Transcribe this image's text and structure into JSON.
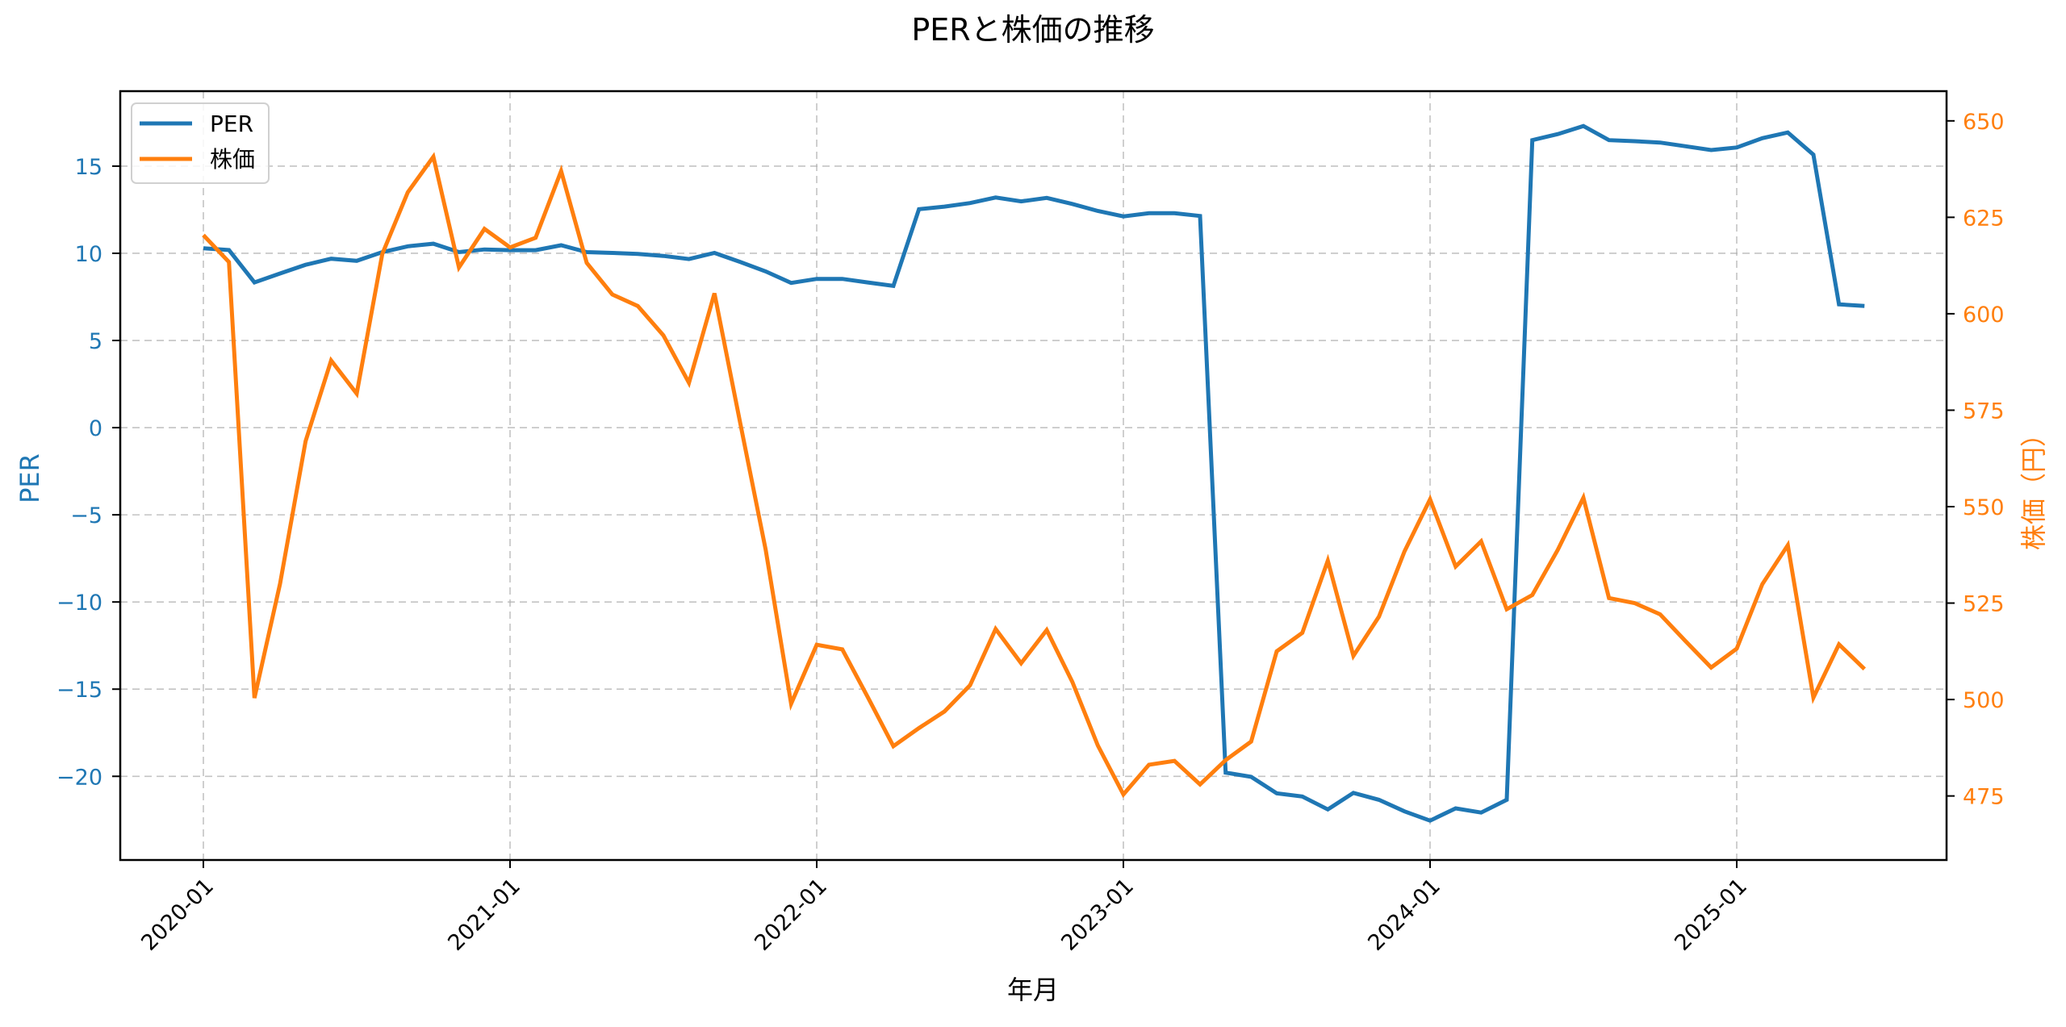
{
  "chart_data": {
    "type": "line",
    "title": "PERと株価の推移",
    "xlabel": "年月",
    "ylabel_left": "PER",
    "ylabel_right": "株価（円）",
    "x_ticks": [
      "2020-01",
      "2021-01",
      "2022-01",
      "2023-01",
      "2024-01",
      "2025-01"
    ],
    "y_left_ticks": [
      15,
      10,
      5,
      0,
      -5,
      -10,
      -15,
      -20
    ],
    "y_right_ticks": [
      650,
      625,
      600,
      575,
      550,
      525,
      500,
      475
    ],
    "ylim_left": [
      -24.8,
      19.3
    ],
    "ylim_right": [
      458.4,
      657.7
    ],
    "grid": true,
    "legend_position": "upper left",
    "x": [
      "2020-01",
      "2020-02",
      "2020-03",
      "2020-04",
      "2020-05",
      "2020-06",
      "2020-07",
      "2020-08",
      "2020-09",
      "2020-10",
      "2020-11",
      "2020-12",
      "2021-01",
      "2021-02",
      "2021-03",
      "2021-04",
      "2021-05",
      "2021-06",
      "2021-07",
      "2021-08",
      "2021-09",
      "2021-10",
      "2021-11",
      "2021-12",
      "2022-01",
      "2022-02",
      "2022-03",
      "2022-04",
      "2022-05",
      "2022-06",
      "2022-07",
      "2022-08",
      "2022-09",
      "2022-10",
      "2022-11",
      "2022-12",
      "2023-01",
      "2023-02",
      "2023-03",
      "2023-04",
      "2023-05",
      "2023-06",
      "2023-07",
      "2023-08",
      "2023-09",
      "2023-10",
      "2023-11",
      "2023-12",
      "2024-01",
      "2024-02",
      "2024-03",
      "2024-04",
      "2024-05",
      "2024-06",
      "2024-07",
      "2024-08",
      "2024-09",
      "2024-10",
      "2024-11",
      "2024-12",
      "2025-01",
      "2025-02",
      "2025-03",
      "2025-04",
      "2025-05",
      "2025-06"
    ],
    "series": [
      {
        "name": "PER",
        "axis": "left",
        "color": "#1f77b4",
        "values": [
          10.29,
          10.19,
          8.33,
          8.84,
          9.34,
          9.69,
          9.57,
          10.07,
          10.4,
          10.55,
          10.07,
          10.22,
          10.18,
          10.18,
          10.46,
          10.07,
          10.02,
          9.96,
          9.85,
          9.67,
          10.02,
          9.51,
          8.96,
          8.3,
          8.53,
          8.53,
          8.33,
          8.13,
          12.53,
          12.68,
          12.88,
          13.2,
          12.98,
          13.18,
          12.83,
          12.43,
          12.12,
          12.3,
          12.3,
          12.14,
          -19.79,
          -20.03,
          -20.98,
          -21.16,
          -21.9,
          -20.95,
          -21.35,
          -22.01,
          -22.54,
          -21.84,
          -22.08,
          -21.35,
          16.49,
          16.84,
          17.3,
          16.49,
          16.43,
          16.35,
          16.14,
          15.92,
          16.07,
          16.6,
          16.93,
          15.66,
          7.07,
          6.98
        ]
      },
      {
        "name": "株価",
        "axis": "right",
        "color": "#ff7f0e",
        "values": [
          620.4,
          613.4,
          500.4,
          530.0,
          567.0,
          587.9,
          579.3,
          615.5,
          631.5,
          640.7,
          612.0,
          622.0,
          617.2,
          619.7,
          637.0,
          613.2,
          605.0,
          602.0,
          594.4,
          582.1,
          605.3,
          571.9,
          538.9,
          498.9,
          514.2,
          513.0,
          500.6,
          487.9,
          492.6,
          496.9,
          503.7,
          518.3,
          509.4,
          518.0,
          504.6,
          488.1,
          475.4,
          483.1,
          484.1,
          478.0,
          484.3,
          489.1,
          512.5,
          517.3,
          536.0,
          511.3,
          521.5,
          538.4,
          551.9,
          534.5,
          541.0,
          523.4,
          527.1,
          538.8,
          552.3,
          526.3,
          525.0,
          522.1,
          515.1,
          508.3,
          513.2,
          529.9,
          540.0,
          500.5,
          514.3,
          507.9
        ]
      }
    ]
  },
  "legend": {
    "items": [
      {
        "label": "PER",
        "color": "#1f77b4"
      },
      {
        "label": "株価",
        "color": "#ff7f0e"
      }
    ]
  },
  "colors": {
    "left_axis": "#1f77b4",
    "right_axis": "#ff7f0e",
    "grid": "#b0b0b0",
    "frame": "#000000"
  }
}
